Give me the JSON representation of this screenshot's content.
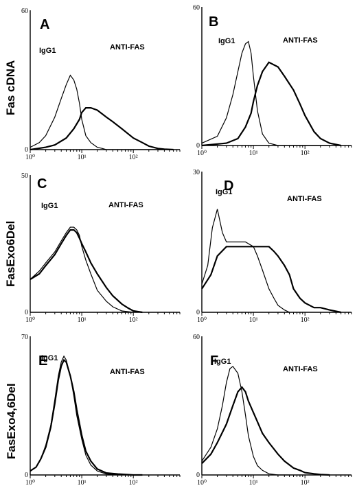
{
  "figure": {
    "row_labels": [
      "Fas cDNA",
      "FasExo6Del",
      "FasExo4,6Del"
    ]
  },
  "chart_data": [
    {
      "panel": "A",
      "type": "line",
      "y_max_label": "60",
      "y_min_label": "0",
      "ylim": [
        0,
        60
      ],
      "xscale": "log",
      "xlim": [
        1,
        800
      ],
      "x_tick_labels": [
        "10⁰",
        "10¹",
        "10²"
      ],
      "annotations": [
        "IgG1",
        "ANTI-FAS"
      ],
      "series": [
        {
          "x": [
            1,
            1.5,
            2,
            3,
            4,
            5,
            6,
            7,
            8,
            9,
            10,
            12,
            15,
            20,
            25,
            30,
            40,
            60,
            100,
            200,
            300,
            500
          ],
          "values": [
            1,
            3,
            6,
            14,
            22,
            28,
            32,
            30,
            26,
            20,
            13,
            6,
            3,
            1,
            0.5,
            0,
            0,
            0,
            0,
            0,
            0,
            0
          ]
        },
        {
          "x": [
            1,
            2,
            3,
            5,
            7,
            9,
            10,
            12,
            15,
            20,
            30,
            40,
            60,
            100,
            150,
            200,
            300,
            400,
            600
          ],
          "values": [
            0,
            1,
            2,
            5,
            9,
            13,
            16,
            18,
            18,
            17,
            14,
            12,
            9,
            5,
            3,
            1.5,
            0.5,
            0.2,
            0
          ]
        }
      ]
    },
    {
      "panel": "B",
      "type": "line",
      "y_max_label": "60",
      "y_min_label": "0",
      "ylim": [
        0,
        60
      ],
      "xscale": "log",
      "xlim": [
        1,
        800
      ],
      "x_tick_labels": [
        "10⁰",
        "10¹",
        "10²"
      ],
      "annotations": [
        "IgG1",
        "ANTI-FAS"
      ],
      "series": [
        {
          "x": [
            1,
            2,
            3,
            4,
            5,
            6,
            7,
            8,
            9,
            10,
            12,
            15,
            20,
            30,
            50,
            100,
            300
          ],
          "values": [
            1,
            4,
            12,
            22,
            32,
            40,
            44,
            45,
            40,
            30,
            15,
            5,
            1,
            0,
            0,
            0,
            0
          ]
        },
        {
          "x": [
            1,
            3,
            5,
            7,
            9,
            10,
            12,
            15,
            20,
            30,
            40,
            60,
            80,
            100,
            150,
            200,
            300,
            500
          ],
          "values": [
            0,
            1,
            3,
            8,
            14,
            19,
            26,
            32,
            36,
            34,
            30,
            24,
            18,
            13,
            6,
            3,
            1,
            0
          ]
        }
      ]
    },
    {
      "panel": "C",
      "type": "line",
      "y_max_label": "50",
      "y_min_label": "0",
      "ylim": [
        0,
        50
      ],
      "xscale": "log",
      "xlim": [
        1,
        800
      ],
      "x_tick_labels": [
        "10⁰",
        "10¹",
        "10²"
      ],
      "annotations": [
        "IgG1",
        "ANTI-FAS"
      ],
      "series": [
        {
          "x": [
            1,
            1.5,
            2,
            3,
            4,
            5,
            6,
            7,
            8,
            9,
            10,
            12,
            15,
            20,
            30,
            40,
            60,
            100
          ],
          "values": [
            12,
            15,
            18,
            22,
            26,
            29,
            31,
            31,
            30,
            28,
            24,
            19,
            14,
            8,
            4,
            2,
            0.5,
            0
          ]
        },
        {
          "x": [
            1,
            1.5,
            2,
            3,
            4,
            5,
            6,
            7,
            8,
            9,
            10,
            12,
            15,
            20,
            30,
            40,
            60,
            80,
            100,
            150
          ],
          "values": [
            12,
            14,
            17,
            21,
            25,
            28,
            30,
            30,
            29,
            27,
            25,
            22,
            18,
            14,
            9,
            6,
            3,
            1.5,
            0.5,
            0
          ]
        }
      ]
    },
    {
      "panel": "D",
      "type": "line",
      "y_max_label": "30",
      "y_min_label": "0",
      "ylim": [
        0,
        30
      ],
      "xscale": "log",
      "xlim": [
        1,
        800
      ],
      "x_tick_labels": [
        "10⁰",
        "10¹",
        "10²"
      ],
      "annotations": [
        "IgG1",
        "ANTI-FAS"
      ],
      "series": [
        {
          "x": [
            1,
            1.3,
            1.6,
            2,
            2.5,
            3,
            4,
            5,
            7,
            10,
            12,
            15,
            20,
            25,
            30,
            40,
            50
          ],
          "values": [
            6,
            10,
            18,
            22,
            17,
            15,
            15,
            15,
            15,
            14,
            12,
            9,
            5,
            3,
            1.5,
            0.5,
            0
          ]
        },
        {
          "x": [
            1,
            1.5,
            2,
            3,
            5,
            7,
            10,
            15,
            20,
            25,
            30,
            40,
            50,
            60,
            80,
            100,
            150,
            200,
            300,
            500
          ],
          "values": [
            5,
            8,
            12,
            14,
            14,
            14,
            14,
            14,
            14,
            13,
            12,
            10,
            8,
            5,
            3,
            2,
            1,
            1,
            0.5,
            0
          ]
        }
      ]
    },
    {
      "panel": "E",
      "type": "line",
      "y_max_label": "70",
      "y_min_label": "0",
      "ylim": [
        0,
        70
      ],
      "xscale": "log",
      "xlim": [
        1,
        800
      ],
      "x_tick_labels": [
        "10⁰",
        "10¹",
        "10²"
      ],
      "annotations": [
        "IgG1",
        "ANTI-FAS"
      ],
      "series": [
        {
          "x": [
            1,
            1.3,
            1.6,
            2,
            2.5,
            3,
            3.5,
            4,
            4.5,
            5,
            6,
            7,
            8,
            10,
            12,
            15,
            20,
            30,
            50,
            100
          ],
          "values": [
            2,
            4,
            8,
            15,
            25,
            38,
            50,
            57,
            60,
            58,
            50,
            40,
            30,
            18,
            10,
            5,
            2,
            0.5,
            0,
            0
          ]
        },
        {
          "x": [
            1,
            1.3,
            1.6,
            2,
            2.5,
            3,
            3.5,
            4,
            4.5,
            5,
            6,
            7,
            8,
            10,
            12,
            15,
            20,
            30,
            50,
            100,
            150
          ],
          "values": [
            2,
            4,
            8,
            14,
            24,
            36,
            48,
            55,
            58,
            57,
            50,
            42,
            33,
            20,
            12,
            7,
            3,
            1,
            0.5,
            0,
            0
          ]
        }
      ]
    },
    {
      "panel": "F",
      "type": "line",
      "y_max_label": "60",
      "y_min_label": "0",
      "ylim": [
        0,
        60
      ],
      "xscale": "log",
      "xlim": [
        1,
        800
      ],
      "x_tick_labels": [
        "10⁰",
        "10¹",
        "10²"
      ],
      "annotations": [
        "IgG1",
        "ANTI-FAS"
      ],
      "series": [
        {
          "x": [
            1,
            1.5,
            2,
            2.5,
            3,
            3.5,
            4,
            5,
            6,
            7,
            8,
            10,
            12,
            15,
            20,
            30,
            50
          ],
          "values": [
            6,
            12,
            20,
            30,
            40,
            46,
            47,
            44,
            36,
            26,
            17,
            8,
            4,
            2,
            0.5,
            0,
            0
          ]
        },
        {
          "x": [
            1,
            1.5,
            2,
            3,
            4,
            5,
            6,
            7,
            8,
            10,
            12,
            15,
            20,
            30,
            40,
            60,
            80,
            100,
            150,
            200,
            300
          ],
          "values": [
            5,
            9,
            14,
            22,
            30,
            36,
            38,
            36,
            32,
            27,
            23,
            18,
            14,
            9,
            6,
            3,
            2,
            1,
            0.5,
            0.2,
            0
          ]
        }
      ]
    }
  ]
}
